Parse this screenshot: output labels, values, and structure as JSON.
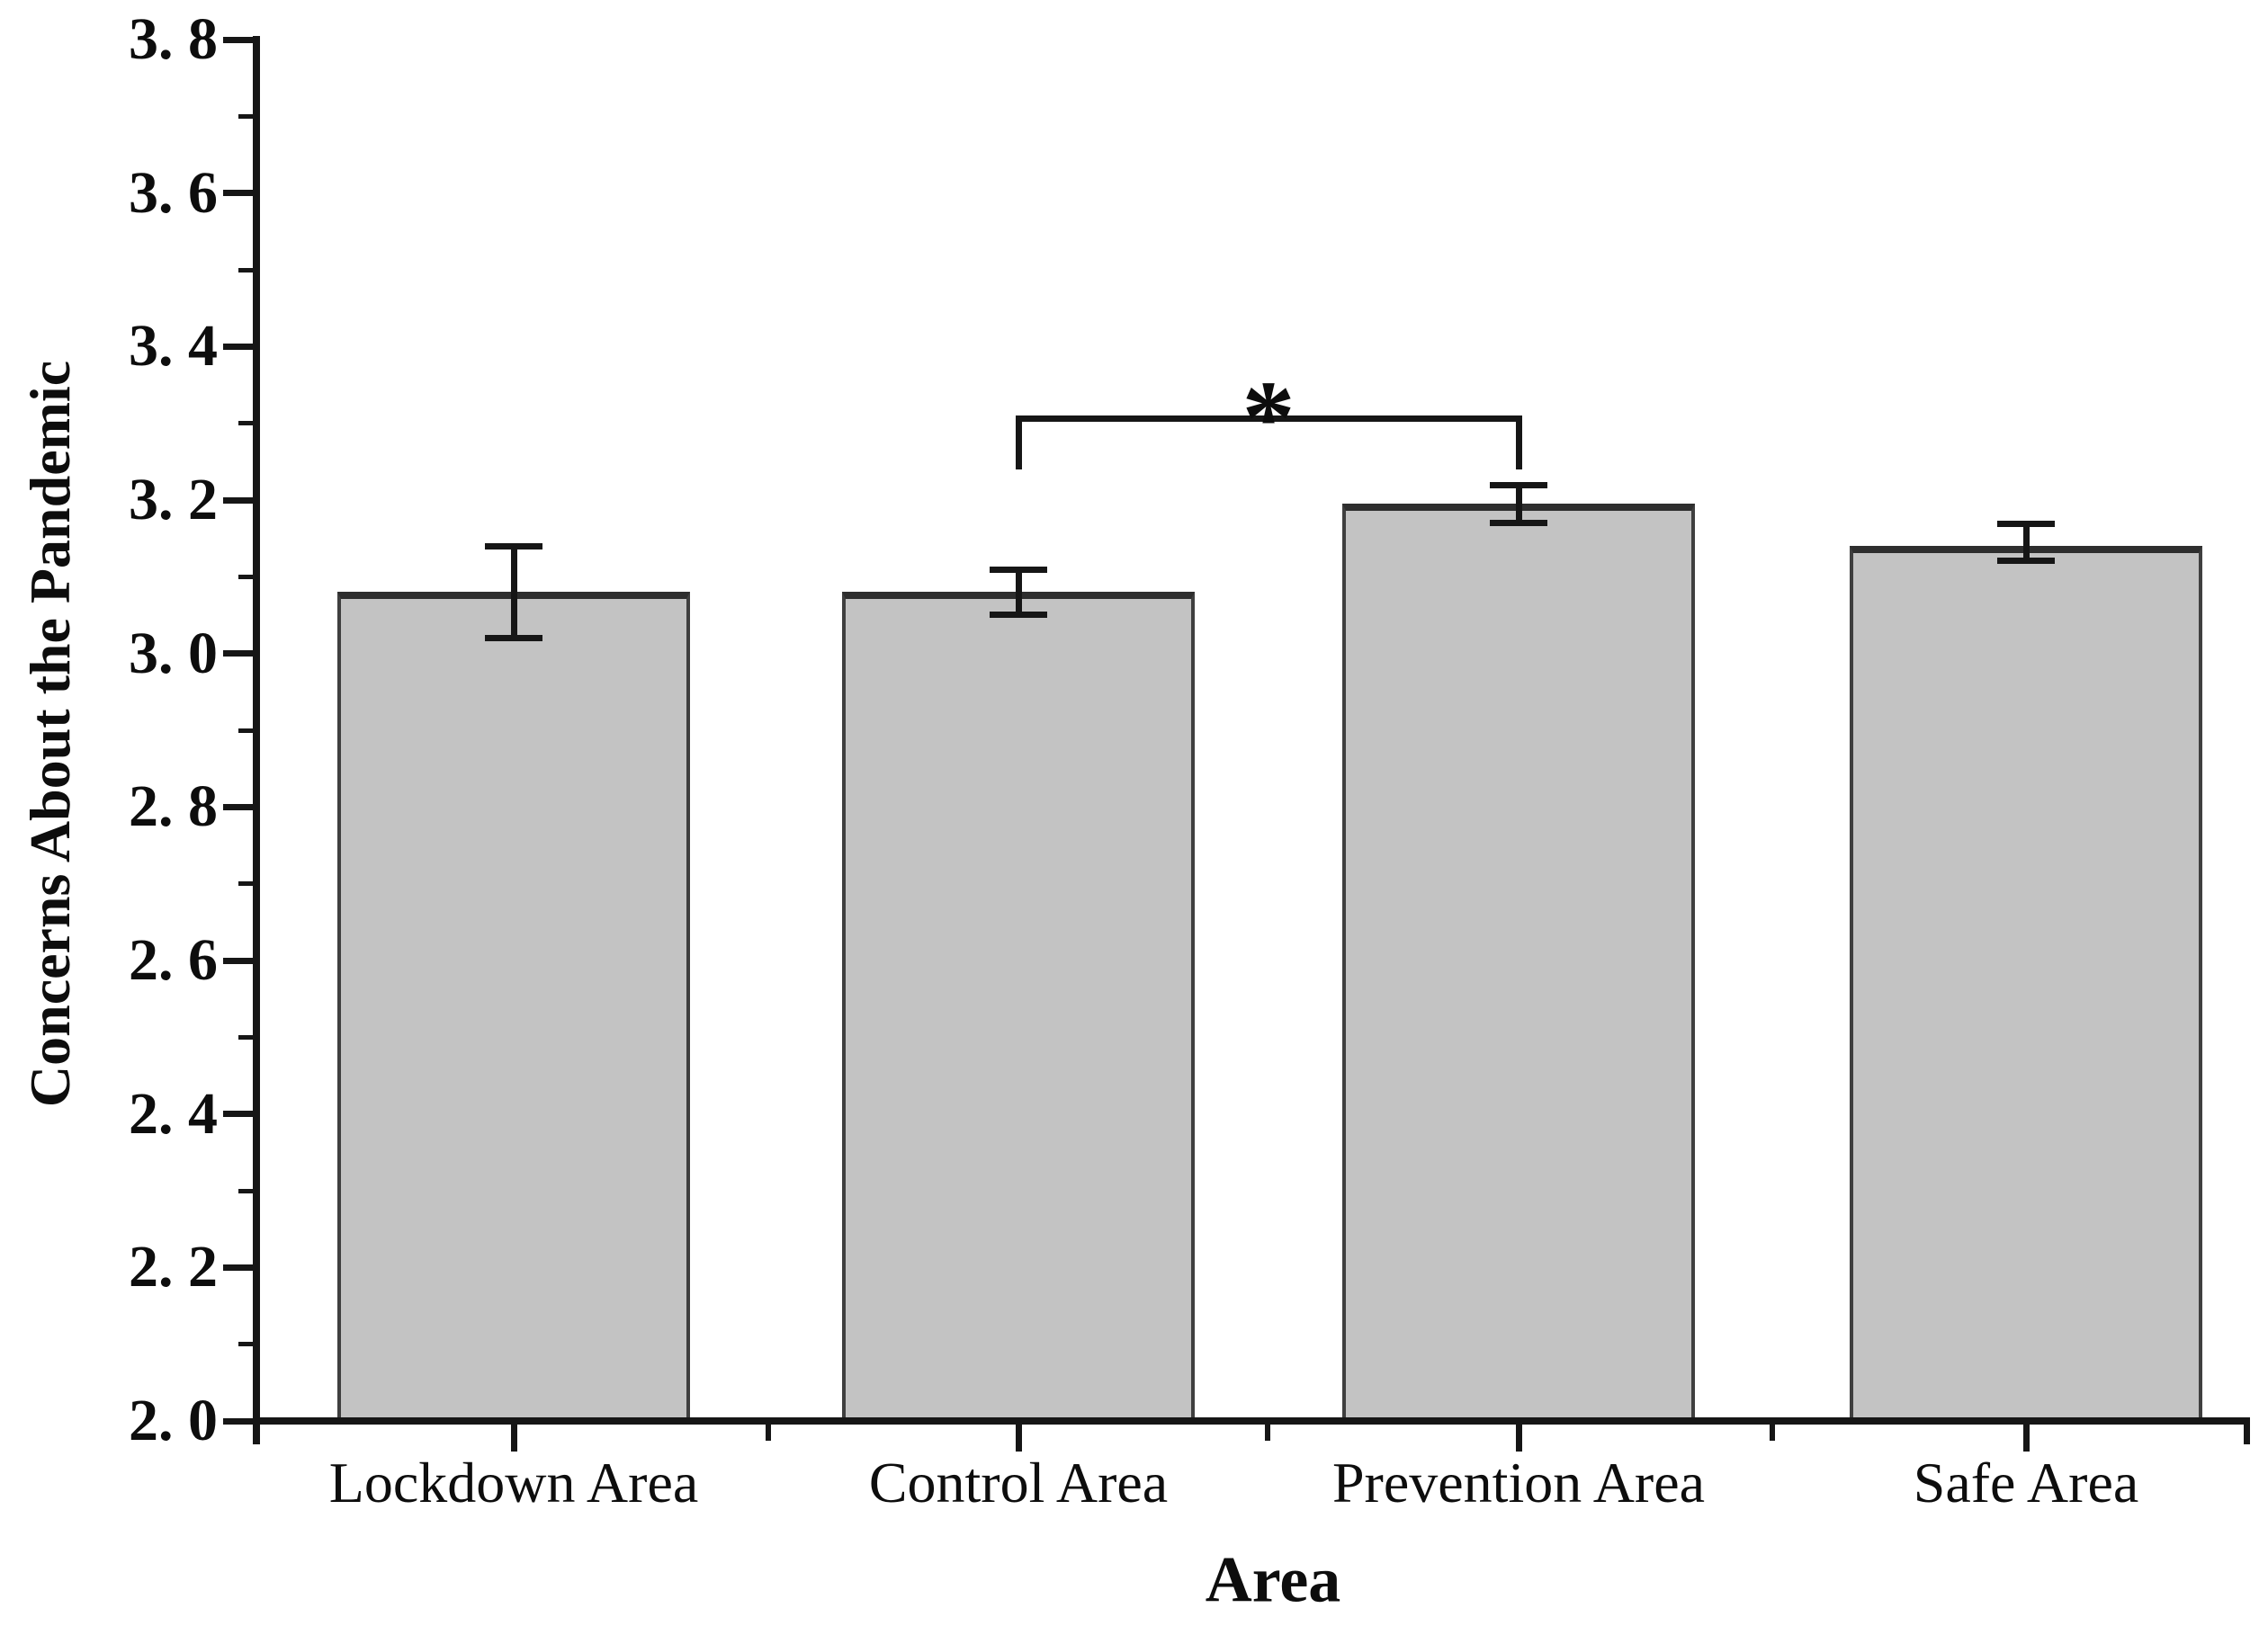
{
  "chart_data": {
    "type": "bar",
    "title": "",
    "xlabel": "Area",
    "ylabel": "Concerns About the Pandemic",
    "categories": [
      "Lockdown Area",
      "Control Area",
      "Prevention Area",
      "Safe Area"
    ],
    "values": [
      3.08,
      3.08,
      3.195,
      3.14
    ],
    "error_top": [
      3.14,
      3.11,
      3.22,
      3.17
    ],
    "error_bottom": [
      3.02,
      3.05,
      3.17,
      3.12
    ],
    "ylim": [
      2.0,
      3.8
    ],
    "y_major_step": 0.2,
    "y_minor_step": 0.1,
    "y_tick_labels": [
      "3. 8",
      "3. 6",
      "3. 4",
      "3. 2",
      "3. 0",
      "2. 8",
      "2. 6",
      "2. 4",
      "2. 2",
      "2. 0"
    ],
    "grid": false,
    "legend": null,
    "significance": {
      "label": "*",
      "between": [
        "Control Area",
        "Prevention Area"
      ],
      "bracket_y": 3.31,
      "leg_bottom_y": 3.24
    }
  },
  "colors": {
    "bar_fill": "#c3c3c3",
    "bar_border_side": "#3f3f3f",
    "bar_border_top": "#2e2e2e",
    "axis": "#161616",
    "text": "#0d0d0d"
  }
}
